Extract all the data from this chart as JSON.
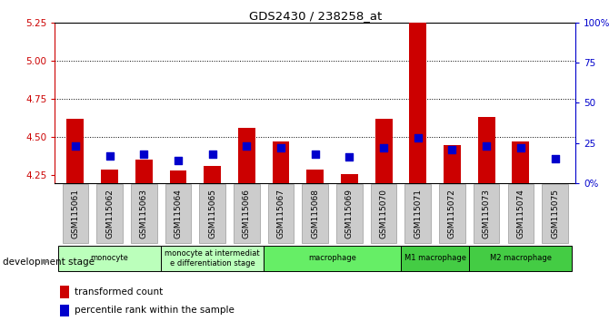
{
  "title": "GDS2430 / 238258_at",
  "samples": [
    "GSM115061",
    "GSM115062",
    "GSM115063",
    "GSM115064",
    "GSM115065",
    "GSM115066",
    "GSM115067",
    "GSM115068",
    "GSM115069",
    "GSM115070",
    "GSM115071",
    "GSM115072",
    "GSM115073",
    "GSM115074",
    "GSM115075"
  ],
  "transformed_count": [
    4.62,
    4.29,
    4.35,
    4.28,
    4.31,
    4.56,
    4.47,
    4.29,
    4.26,
    4.62,
    5.38,
    4.45,
    4.63,
    4.47,
    4.2
  ],
  "percentile_rank": [
    23,
    17,
    18,
    14,
    18,
    23,
    22,
    18,
    16,
    22,
    28,
    21,
    23,
    22,
    15
  ],
  "ylim_left": [
    4.2,
    5.25
  ],
  "ylim_right": [
    0,
    100
  ],
  "yticks_left": [
    4.25,
    4.5,
    4.75,
    5.0,
    5.25
  ],
  "yticks_right": [
    0,
    25,
    50,
    75,
    100
  ],
  "ytick_labels_right": [
    "0%",
    "25",
    "50",
    "75",
    "100%"
  ],
  "hlines": [
    4.5,
    4.75,
    5.0
  ],
  "groups": [
    {
      "label": "monocyte",
      "start": 0,
      "end": 2,
      "color": "#bbffbb"
    },
    {
      "label": "monocyte at intermediat\ne differentiation stage",
      "start": 3,
      "end": 5,
      "color": "#bbffbb"
    },
    {
      "label": "macrophage",
      "start": 6,
      "end": 9,
      "color": "#66ee66"
    },
    {
      "label": "M1 macrophage",
      "start": 10,
      "end": 11,
      "color": "#44cc44"
    },
    {
      "label": "M2 macrophage",
      "start": 12,
      "end": 14,
      "color": "#44cc44"
    }
  ],
  "bar_color": "#cc0000",
  "dot_color": "#0000cc",
  "bar_width": 0.5,
  "dot_size": 30,
  "left_tick_color": "#cc0000",
  "right_tick_color": "#0000cc",
  "background_color": "#ffffff"
}
